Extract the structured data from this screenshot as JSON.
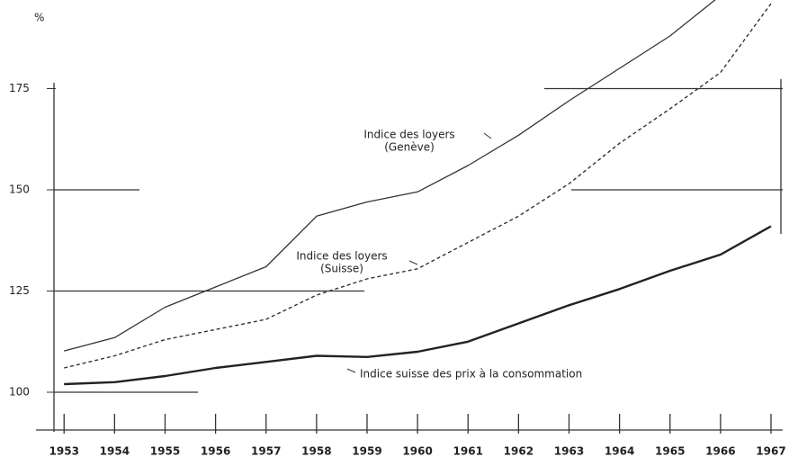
{
  "chart_data": {
    "type": "line",
    "y_label": "%",
    "x": [
      1953,
      1954,
      1955,
      1956,
      1957,
      1958,
      1959,
      1960,
      1961,
      1962,
      1963,
      1964,
      1965,
      1966,
      1967
    ],
    "xlim": [
      1952.8,
      1967
    ],
    "xticks": [
      1953,
      1954,
      1955,
      1956,
      1957,
      1958,
      1959,
      1960,
      1961,
      1962,
      1963,
      1964,
      1965,
      1966,
      1967
    ],
    "ylim": [
      96,
      196
    ],
    "yticks": [
      100,
      125,
      150,
      175
    ],
    "series": [
      {
        "name": "Indice des loyers (Genève)",
        "color": "#333333",
        "style": "solid",
        "values": [
          110.2,
          113.5,
          121,
          126,
          131,
          143.5,
          147,
          149.5,
          156,
          163.5,
          172,
          180,
          188,
          198,
          null
        ]
      },
      {
        "name": "Indice des loyers (Suisse)",
        "color": "#333333",
        "style": "dashed",
        "values": [
          106,
          109,
          113,
          115.5,
          118,
          124,
          128,
          130.5,
          137,
          143.5,
          151.5,
          161.5,
          170,
          179,
          196
        ]
      },
      {
        "name": "Indice suisse des prix à la consommation",
        "color": "#222222",
        "style": "thick",
        "values": [
          102,
          102.5,
          104,
          106,
          107.5,
          109,
          108.7,
          110,
          112.5,
          117,
          121.5,
          125.5,
          130,
          134,
          141
        ]
      }
    ],
    "annotations": [
      {
        "lines": [
          "Indice des loyers",
          "(Genève)"
        ]
      },
      {
        "lines": [
          "Indice des loyers",
          "(Suisse)"
        ]
      },
      {
        "lines": [
          "Indice suisse des prix à la consommation"
        ]
      }
    ]
  }
}
